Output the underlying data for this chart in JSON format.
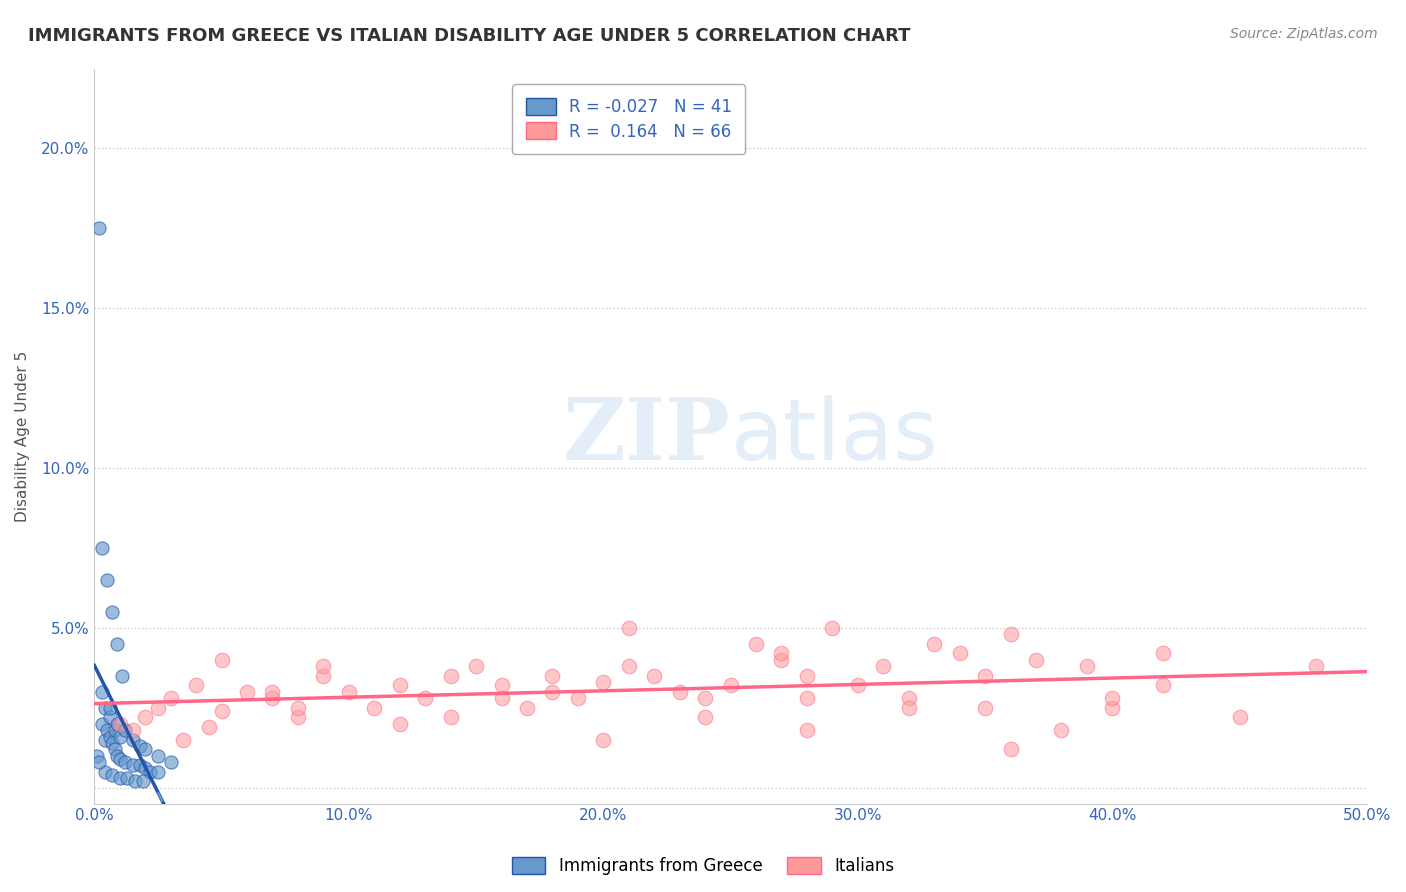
{
  "title": "IMMIGRANTS FROM GREECE VS ITALIAN DISABILITY AGE UNDER 5 CORRELATION CHART",
  "source": "Source: ZipAtlas.com",
  "ylabel": "Disability Age Under 5",
  "xlim": [
    0.0,
    0.5
  ],
  "xticks": [
    0.0,
    0.1,
    0.2,
    0.3,
    0.4,
    0.5
  ],
  "yticks": [
    0.0,
    0.05,
    0.1,
    0.15,
    0.2
  ],
  "ytick_labels": [
    "",
    "5.0%",
    "10.0%",
    "15.0%",
    "20.0%"
  ],
  "xtick_labels": [
    "0.0%",
    "10.0%",
    "20.0%",
    "30.0%",
    "40.0%",
    "50.0%"
  ],
  "blue_R": -0.027,
  "blue_N": 41,
  "pink_R": 0.164,
  "pink_N": 66,
  "blue_color": "#6699CC",
  "pink_color": "#FF9999",
  "blue_line_color": "#2255AA",
  "pink_line_color": "#FF6688",
  "blue_scatter_x": [
    0.002,
    0.003,
    0.004,
    0.005,
    0.006,
    0.007,
    0.008,
    0.009,
    0.01,
    0.012,
    0.015,
    0.018,
    0.02,
    0.022,
    0.025,
    0.003,
    0.005,
    0.007,
    0.009,
    0.011,
    0.004,
    0.006,
    0.008,
    0.01,
    0.003,
    0.006,
    0.009,
    0.012,
    0.015,
    0.018,
    0.02,
    0.025,
    0.03,
    0.004,
    0.007,
    0.01,
    0.013,
    0.016,
    0.019,
    0.001,
    0.002
  ],
  "blue_scatter_y": [
    0.175,
    0.02,
    0.015,
    0.018,
    0.016,
    0.014,
    0.012,
    0.01,
    0.009,
    0.008,
    0.007,
    0.007,
    0.006,
    0.005,
    0.005,
    0.075,
    0.065,
    0.055,
    0.045,
    0.035,
    0.025,
    0.022,
    0.018,
    0.016,
    0.03,
    0.025,
    0.02,
    0.018,
    0.015,
    0.013,
    0.012,
    0.01,
    0.008,
    0.005,
    0.004,
    0.003,
    0.003,
    0.002,
    0.002,
    0.01,
    0.008
  ],
  "pink_scatter_x": [
    0.01,
    0.015,
    0.02,
    0.025,
    0.03,
    0.035,
    0.04,
    0.045,
    0.05,
    0.06,
    0.07,
    0.08,
    0.09,
    0.1,
    0.11,
    0.12,
    0.13,
    0.14,
    0.15,
    0.16,
    0.17,
    0.18,
    0.19,
    0.2,
    0.21,
    0.22,
    0.23,
    0.24,
    0.25,
    0.26,
    0.27,
    0.28,
    0.29,
    0.3,
    0.31,
    0.32,
    0.33,
    0.34,
    0.35,
    0.36,
    0.37,
    0.38,
    0.39,
    0.4,
    0.42,
    0.45,
    0.48,
    0.05,
    0.08,
    0.12,
    0.16,
    0.2,
    0.24,
    0.28,
    0.32,
    0.36,
    0.4,
    0.07,
    0.14,
    0.21,
    0.28,
    0.35,
    0.42,
    0.09,
    0.18,
    0.27
  ],
  "pink_scatter_y": [
    0.02,
    0.018,
    0.022,
    0.025,
    0.028,
    0.015,
    0.032,
    0.019,
    0.024,
    0.03,
    0.028,
    0.022,
    0.035,
    0.03,
    0.025,
    0.032,
    0.028,
    0.035,
    0.038,
    0.032,
    0.025,
    0.03,
    0.028,
    0.033,
    0.038,
    0.035,
    0.03,
    0.028,
    0.032,
    0.045,
    0.04,
    0.035,
    0.05,
    0.032,
    0.038,
    0.028,
    0.045,
    0.042,
    0.035,
    0.048,
    0.04,
    0.018,
    0.038,
    0.025,
    0.042,
    0.022,
    0.038,
    0.04,
    0.025,
    0.02,
    0.028,
    0.015,
    0.022,
    0.018,
    0.025,
    0.012,
    0.028,
    0.03,
    0.022,
    0.05,
    0.028,
    0.025,
    0.032,
    0.038,
    0.035,
    0.042
  ],
  "watermark_zip": "ZIP",
  "watermark_atlas": "atlas",
  "background_color": "#FFFFFF",
  "grid_color": "#CCCCCC"
}
